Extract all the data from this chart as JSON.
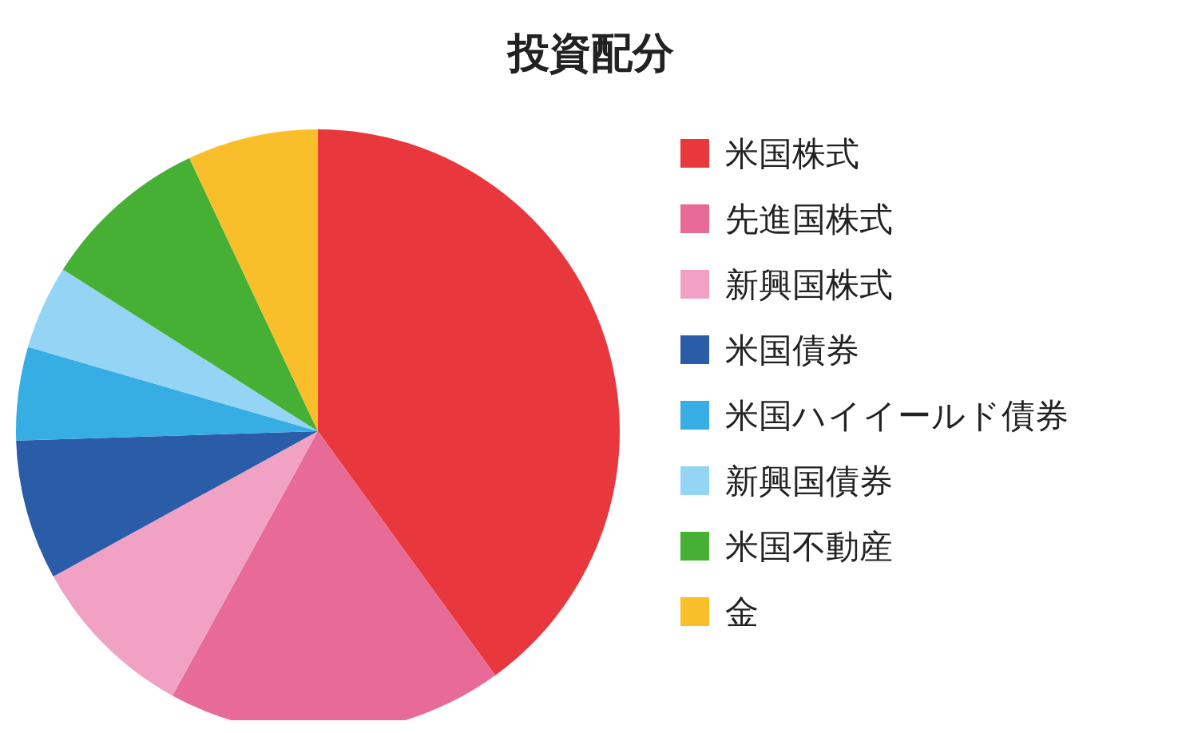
{
  "chart_data": {
    "type": "pie",
    "title": "投資配分",
    "categories": [
      "米国株式",
      "先進国株式",
      "新興国株式",
      "米国債券",
      "米国ハイイールド債券",
      "新興国債券",
      "米国不動産",
      "金"
    ],
    "values": [
      40,
      18,
      9,
      7.5,
      5,
      4.5,
      9,
      7
    ],
    "colors": [
      "#e8383d",
      "#e86a96",
      "#f0a1c4",
      "#2a5ca8",
      "#36aee3",
      "#94d4f4",
      "#46b035",
      "#f9bf2b"
    ],
    "legend": "right"
  }
}
